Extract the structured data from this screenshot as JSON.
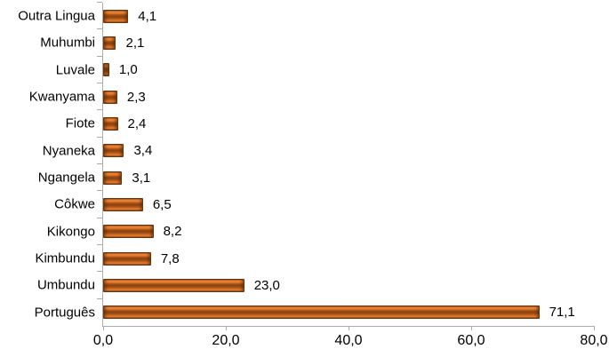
{
  "chart_data": {
    "type": "bar",
    "orientation": "horizontal",
    "title": "",
    "xlabel": "",
    "ylabel": "",
    "categories": [
      "Outra Lingua",
      "Muhumbi",
      "Luvale",
      "Kwanyama",
      "Fiote",
      "Nyaneka",
      "Ngangela",
      "Côkwe",
      "Kikongo",
      "Kimbundu",
      "Umbundu",
      "Português"
    ],
    "values": [
      4.1,
      2.1,
      1.0,
      2.3,
      2.4,
      3.4,
      3.1,
      6.5,
      8.2,
      7.8,
      23.0,
      71.1
    ],
    "value_labels": [
      "4,1",
      "2,1",
      "1,0",
      "2,3",
      "2,4",
      "3,4",
      "3,1",
      "6,5",
      "8,2",
      "7,8",
      "23,0",
      "71,1"
    ],
    "xlim": [
      0,
      80
    ],
    "x_ticks": [
      0,
      20,
      40,
      60,
      80
    ],
    "x_tick_labels": [
      "0,0",
      "20,0",
      "40,0",
      "60,0",
      "80,0"
    ],
    "grid": false,
    "legend": false,
    "decimal_separator": ",",
    "colors": {
      "bar_fill": "#E2712B",
      "bar_border": "#6E3209",
      "axis": "#ACACAC",
      "text": "#000000",
      "background": "#FFFFFF"
    }
  }
}
